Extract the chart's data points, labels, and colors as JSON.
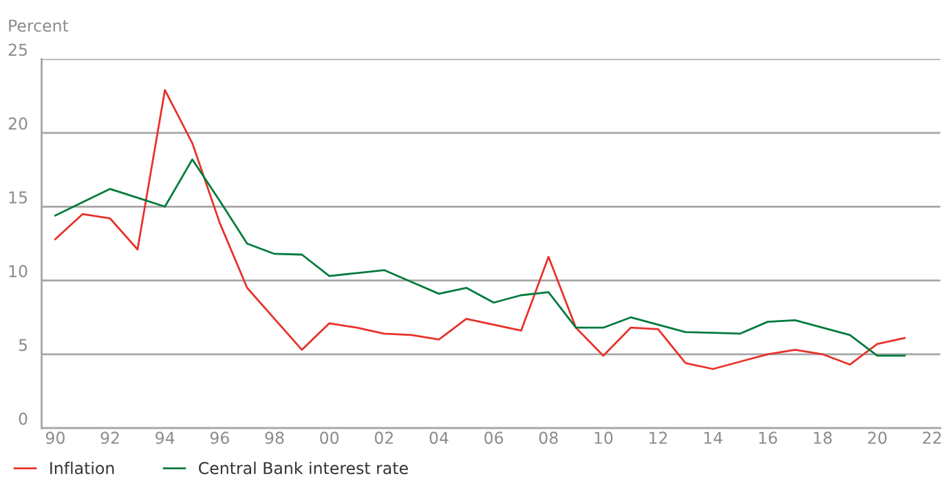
{
  "chart_data": {
    "type": "line",
    "ylabel": "Percent",
    "x": [
      1990,
      1991,
      1992,
      1993,
      1994,
      1995,
      1996,
      1997,
      1998,
      1999,
      2000,
      2001,
      2002,
      2003,
      2004,
      2005,
      2006,
      2007,
      2008,
      2009,
      2010,
      2011,
      2012,
      2013,
      2014,
      2015,
      2016,
      2017,
      2018,
      2019,
      2020,
      2021
    ],
    "series": [
      {
        "name": "Inflation",
        "color": "#e8312a",
        "values": [
          12.8,
          14.5,
          14.2,
          12.1,
          22.9,
          19.3,
          13.9,
          9.5,
          7.4,
          5.3,
          7.1,
          6.8,
          6.4,
          6.3,
          6.0,
          7.4,
          7.0,
          6.6,
          11.6,
          6.8,
          4.9,
          6.8,
          6.7,
          4.4,
          4.0,
          4.5,
          5.0,
          5.3,
          5.0,
          4.3,
          5.7,
          6.1
        ]
      },
      {
        "name": "Central Bank interest rate",
        "color": "#007a3d",
        "values": [
          14.4,
          15.3,
          16.2,
          15.6,
          15.0,
          18.2,
          15.4,
          12.5,
          11.8,
          11.75,
          10.3,
          10.5,
          10.7,
          9.9,
          9.1,
          9.5,
          8.5,
          9.0,
          9.2,
          6.8,
          6.8,
          7.5,
          7.0,
          6.5,
          6.45,
          6.4,
          7.2,
          7.3,
          6.8,
          6.3,
          4.9,
          4.9
        ]
      }
    ],
    "xlim": [
      1989.5,
      2022.3
    ],
    "xticks": [
      {
        "value": 1990,
        "label": "90"
      },
      {
        "value": 1992,
        "label": "92"
      },
      {
        "value": 1994,
        "label": "94"
      },
      {
        "value": 1996,
        "label": "96"
      },
      {
        "value": 1998,
        "label": "98"
      },
      {
        "value": 2000,
        "label": "00"
      },
      {
        "value": 2002,
        "label": "02"
      },
      {
        "value": 2004,
        "label": "04"
      },
      {
        "value": 2006,
        "label": "06"
      },
      {
        "value": 2008,
        "label": "08"
      },
      {
        "value": 2010,
        "label": "10"
      },
      {
        "value": 2012,
        "label": "12"
      },
      {
        "value": 2014,
        "label": "14"
      },
      {
        "value": 2016,
        "label": "16"
      },
      {
        "value": 2018,
        "label": "18"
      },
      {
        "value": 2020,
        "label": "20"
      },
      {
        "value": 2022,
        "label": "22"
      }
    ],
    "ylim": [
      0,
      25
    ],
    "yticks": [
      0,
      5,
      10,
      15,
      20,
      25
    ],
    "grid": "y",
    "legend": "bottom left",
    "marker": "none",
    "line_style": "solid"
  }
}
